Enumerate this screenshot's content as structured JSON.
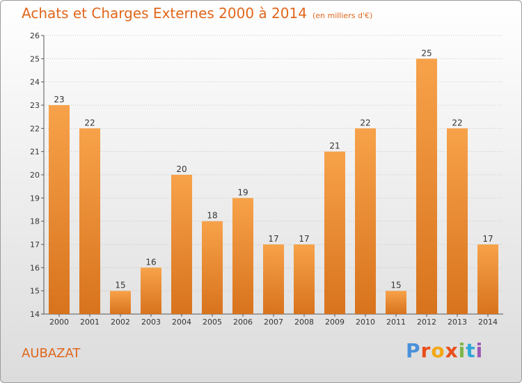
{
  "header": {
    "title": "Achats et Charges Externes 2000 à 2014",
    "subtitle": "(en milliers d'€)"
  },
  "footer": {
    "commune": "AUBAZAT",
    "brand": "Proxiti",
    "brand_colors": [
      "#4a90d9",
      "#e94e1b",
      "#f3a712",
      "#e94e1b",
      "#7ab648",
      "#2fa7d8",
      "#9b59b6"
    ]
  },
  "colors": {
    "accent": "#e0661b",
    "bar_top": "#f7a24a",
    "bar_bottom": "#d8731d",
    "grid": "#c8c8c8"
  },
  "chart_data": {
    "type": "bar",
    "title": "Achats et Charges Externes 2000 à 2014",
    "subtitle": "(en milliers d'€)",
    "categories": [
      "2000",
      "2001",
      "2002",
      "2003",
      "2004",
      "2005",
      "2006",
      "2007",
      "2008",
      "2009",
      "2010",
      "2011",
      "2012",
      "2013",
      "2014"
    ],
    "values": [
      23,
      22,
      15,
      16,
      20,
      18,
      19,
      17,
      17,
      21,
      22,
      15,
      25,
      22,
      17
    ],
    "ylim": [
      14,
      26
    ],
    "yticks": [
      14,
      15,
      16,
      17,
      18,
      19,
      20,
      21,
      22,
      23,
      24,
      25,
      26
    ],
    "grid": true,
    "xlabel": "",
    "ylabel": ""
  }
}
